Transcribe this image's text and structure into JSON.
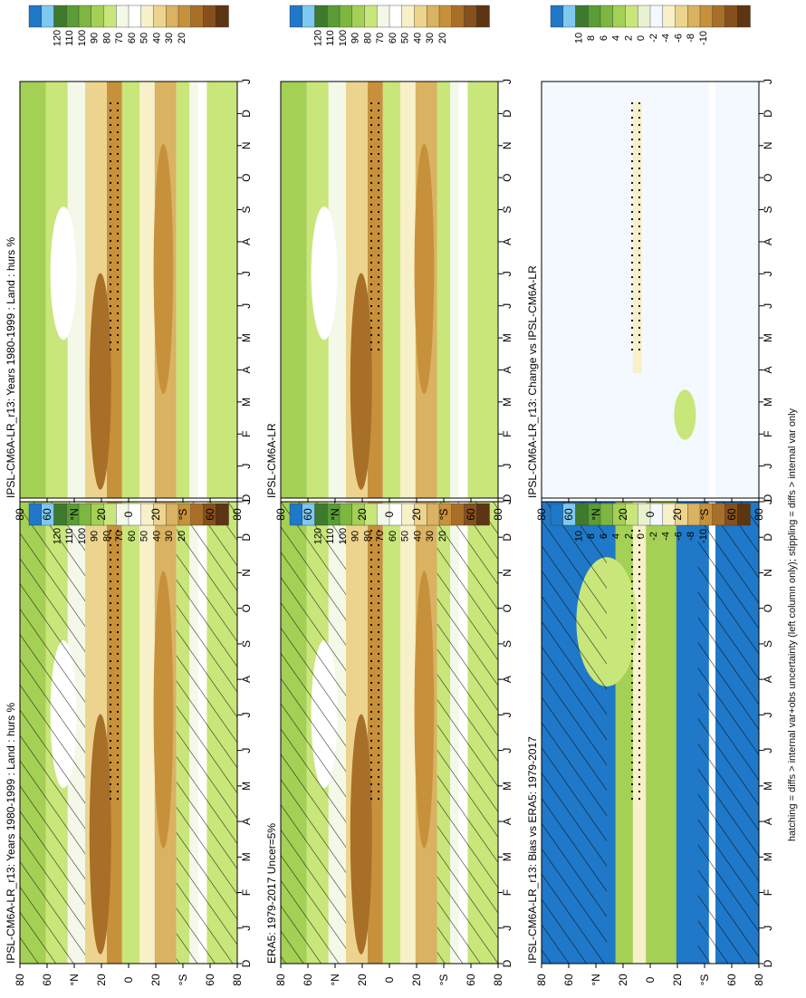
{
  "footer_note": "hatching = diffs > internal var+obs uncertainty (left column only); stippling = diffs > internal var only",
  "colors": {
    "hurs_levels_desc": [
      "#1f78c8",
      "#7fc8f0",
      "#3d7a2e",
      "#5a9c36",
      "#7db640",
      "#a4d055",
      "#c8e67a",
      "#f4f8e8",
      "#ffffff",
      "#f7f0c8",
      "#ecd48e",
      "#d9b262",
      "#c7913c",
      "#a86f28",
      "#86501c",
      "#5e3512"
    ],
    "diff_levels_desc": [
      "#1f78c8",
      "#7fc8f0",
      "#3d7a2e",
      "#5a9c36",
      "#7db640",
      "#a4d055",
      "#c8e67a",
      "#e8f2d0",
      "#f4f8ff",
      "#f7f0c8",
      "#ecd48e",
      "#d9b262",
      "#c7913c",
      "#a86f28",
      "#86501c",
      "#5e3512"
    ]
  },
  "chart_data": [
    {
      "type": "heatmap",
      "id": "left-top",
      "title": "IPSL-CM6A-LR_r13: Years 1980-1999 : Land : hurs %",
      "x_ticks": [
        "D",
        "J",
        "F",
        "M",
        "A",
        "M",
        "J",
        "J",
        "A",
        "S",
        "O",
        "N",
        "D",
        "J"
      ],
      "y_ticks": [
        "80",
        "60",
        "°N",
        "20",
        "0",
        "20",
        "°S",
        "60",
        "80"
      ],
      "colorbar_labels": [
        "120",
        "110",
        "100",
        "90",
        "80",
        "70",
        "60",
        "50",
        "40",
        "30",
        "20"
      ],
      "hatching": true,
      "stippling": true
    },
    {
      "type": "heatmap",
      "id": "right-top",
      "title": "IPSL-CM6A-LR_r13: Years 1980-1999 : Land : hurs %",
      "x_ticks": [
        "D",
        "J",
        "F",
        "M",
        "A",
        "M",
        "J",
        "J",
        "A",
        "S",
        "O",
        "N",
        "D",
        "J"
      ],
      "y_ticks": [
        "80",
        "60",
        "°N",
        "20",
        "0",
        "20",
        "°S",
        "60",
        "80"
      ],
      "colorbar_labels": [
        "120",
        "110",
        "100",
        "90",
        "80",
        "70",
        "60",
        "50",
        "40",
        "30",
        "20"
      ],
      "hatching": false,
      "stippling": true
    },
    {
      "type": "heatmap",
      "id": "left-middle",
      "title": "ERA5: 1979-2017 Uncer=5%",
      "x_ticks": [
        "D",
        "J",
        "F",
        "M",
        "A",
        "M",
        "J",
        "J",
        "A",
        "S",
        "O",
        "N",
        "D",
        "J"
      ],
      "y_ticks": [
        "80",
        "60",
        "°N",
        "20",
        "0",
        "20",
        "°S",
        "60",
        "80"
      ],
      "colorbar_labels": [
        "120",
        "110",
        "100",
        "90",
        "80",
        "70",
        "60",
        "50",
        "40",
        "30",
        "20"
      ],
      "hatching": true,
      "stippling": true
    },
    {
      "type": "heatmap",
      "id": "right-middle",
      "title": "IPSL-CM6A-LR",
      "x_ticks": [
        "D",
        "J",
        "F",
        "M",
        "A",
        "M",
        "J",
        "J",
        "A",
        "S",
        "O",
        "N",
        "D",
        "J"
      ],
      "y_ticks": [
        "80",
        "60",
        "°N",
        "20",
        "0",
        "20",
        "°S",
        "60",
        "80"
      ],
      "colorbar_labels": [
        "120",
        "110",
        "100",
        "90",
        "80",
        "70",
        "60",
        "50",
        "40",
        "30",
        "20"
      ],
      "hatching": false,
      "stippling": true
    },
    {
      "type": "heatmap",
      "id": "left-bottom",
      "title": "IPSL-CM6A-LR_r13: Bias vs ERA5: 1979-2017",
      "x_ticks": [
        "D",
        "J",
        "F",
        "M",
        "A",
        "M",
        "J",
        "J",
        "A",
        "S",
        "O",
        "N",
        "D",
        "J"
      ],
      "y_ticks": [
        "80",
        "60",
        "°N",
        "20",
        "0",
        "20",
        "°S",
        "60",
        "80"
      ],
      "colorbar_labels": [
        "10",
        "8",
        "6",
        "4",
        "2",
        "0",
        "-2",
        "-4",
        "-6",
        "-8",
        "-10"
      ],
      "hatching": true,
      "stippling": true
    },
    {
      "type": "heatmap",
      "id": "right-bottom",
      "title": "IPSL-CM6A-LR_r13: Change vs IPSL-CM6A-LR",
      "x_ticks": [
        "D",
        "J",
        "F",
        "M",
        "A",
        "M",
        "J",
        "J",
        "A",
        "S",
        "O",
        "N",
        "D",
        "J"
      ],
      "y_ticks": [
        "80",
        "60",
        "°N",
        "20",
        "0",
        "20",
        "°S",
        "60",
        "80"
      ],
      "colorbar_labels": [
        "10",
        "8",
        "6",
        "4",
        "2",
        "0",
        "-2",
        "-4",
        "-6",
        "-8",
        "-10"
      ],
      "hatching": false,
      "stippling": true
    }
  ]
}
